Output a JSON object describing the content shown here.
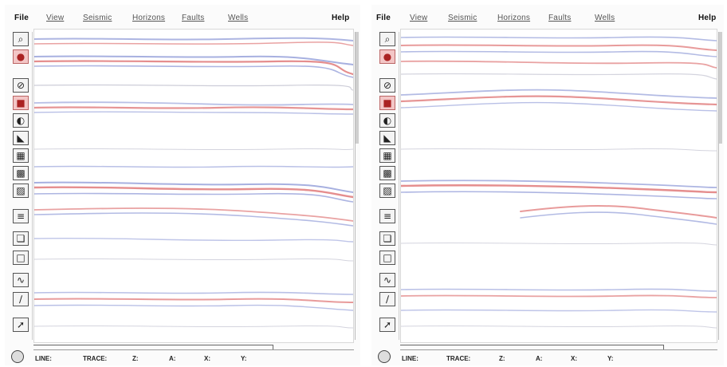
{
  "panels": [
    {
      "menu": [
        "File",
        "View",
        "Seismic",
        "Horizons",
        "Faults",
        "Wells",
        "Help"
      ],
      "status": [
        "LINE:",
        "TRACE:",
        "Z:",
        "A:",
        "X:",
        "Y:"
      ]
    },
    {
      "menu": [
        "File",
        "View",
        "Seismic",
        "Horizons",
        "Faults",
        "Wells",
        "Help"
      ],
      "status": [
        "LINE:",
        "TRACE:",
        "Z:",
        "A:",
        "X:",
        "Y:"
      ]
    }
  ],
  "toolbar_icons": [
    "zoom-icon",
    "pointer-icon",
    "no-entry-icon",
    "color-box-icon",
    "bucket-icon",
    "paint-icon",
    "hatch-icon",
    "grid-icon",
    "texture-icon",
    "stack-icon",
    "layers-icon",
    "window-icon",
    "wave-icon",
    "line-icon",
    "cursor-icon"
  ],
  "colors": {
    "reflector_red": "#e07a7a",
    "reflector_blue": "#8a96d6",
    "reflector_gray": "#b8b8c8"
  }
}
